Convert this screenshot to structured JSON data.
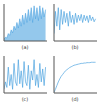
{
  "chart_data": [
    {
      "type": "area",
      "title": "(a)",
      "color": "#4da3e0",
      "xlim": [
        0,
        30
      ],
      "xticks": [
        0,
        10,
        20,
        30
      ],
      "ylim": [
        0,
        1
      ],
      "yticks": [
        0,
        0.5,
        1
      ],
      "tick_labels": false,
      "x": [
        0,
        1,
        2,
        3,
        4,
        5,
        6,
        7,
        8,
        9,
        10,
        11,
        12,
        13,
        14,
        15,
        16,
        17,
        18,
        19,
        20,
        21,
        22,
        23,
        24,
        25,
        26,
        27,
        28,
        29
      ],
      "values": [
        0.05,
        0.1,
        0.08,
        0.2,
        0.15,
        0.3,
        0.22,
        0.4,
        0.3,
        0.5,
        0.35,
        0.6,
        0.4,
        0.7,
        0.45,
        0.75,
        0.5,
        0.85,
        0.55,
        0.9,
        0.5,
        0.95,
        0.6,
        0.9,
        0.55,
        0.95,
        0.6,
        0.9,
        0.65,
        0.85
      ]
    },
    {
      "type": "line",
      "title": "(b)",
      "color": "#4da3e0",
      "xlim": [
        0,
        30
      ],
      "xticks": [
        0,
        10,
        20,
        30
      ],
      "ylim": [
        0,
        1
      ],
      "yticks": [
        0,
        0.5,
        1
      ],
      "tick_labels": false,
      "x": [
        0,
        1,
        2,
        3,
        4,
        5,
        6,
        7,
        8,
        9,
        10,
        11,
        12,
        13,
        14,
        15,
        16,
        17,
        18,
        19,
        20,
        21,
        22,
        23,
        24,
        25,
        26,
        27,
        28,
        29
      ],
      "values": [
        0.2,
        0.8,
        0.4,
        0.9,
        0.3,
        0.85,
        0.45,
        0.8,
        0.5,
        0.75,
        0.4,
        0.8,
        0.5,
        0.7,
        0.45,
        0.75,
        0.5,
        0.7,
        0.55,
        0.72,
        0.5,
        0.7,
        0.55,
        0.68,
        0.5,
        0.7,
        0.55,
        0.65,
        0.52,
        0.6
      ]
    },
    {
      "type": "line",
      "title": "(c)",
      "color": "#4da3e0",
      "xlim": [
        0,
        30
      ],
      "xticks": [
        0,
        10,
        20,
        30
      ],
      "ylim": [
        0,
        1
      ],
      "yticks": [
        0,
        0.5,
        1
      ],
      "tick_labels": false,
      "x": [
        0,
        1,
        2,
        3,
        4,
        5,
        6,
        7,
        8,
        9,
        10,
        11,
        12,
        13,
        14,
        15,
        16,
        17,
        18,
        19,
        20,
        21,
        22,
        23,
        24,
        25,
        26,
        27,
        28,
        29
      ],
      "values": [
        0.1,
        0.3,
        0.15,
        0.7,
        0.2,
        0.5,
        0.1,
        0.8,
        0.3,
        0.2,
        0.9,
        0.25,
        0.6,
        0.15,
        0.85,
        0.3,
        0.2,
        0.75,
        0.1,
        0.6,
        0.35,
        0.9,
        0.2,
        0.5,
        0.15,
        0.8,
        0.3,
        0.65,
        0.2,
        0.7
      ]
    },
    {
      "type": "line",
      "title": "(d)",
      "color": "#4da3e0",
      "xlim": [
        0,
        30
      ],
      "xticks": [
        0,
        10,
        20,
        30
      ],
      "ylim": [
        0,
        1
      ],
      "yticks": [
        0,
        0.5,
        1
      ],
      "tick_labels": false,
      "x": [
        0,
        1,
        2,
        3,
        4,
        5,
        6,
        7,
        8,
        9,
        10,
        11,
        12,
        13,
        14,
        15,
        16,
        17,
        18,
        19,
        20,
        21,
        22,
        23,
        24,
        25,
        26,
        27,
        28,
        29
      ],
      "values": [
        0.02,
        0.1,
        0.2,
        0.3,
        0.38,
        0.45,
        0.5,
        0.55,
        0.6,
        0.63,
        0.66,
        0.69,
        0.71,
        0.73,
        0.75,
        0.76,
        0.77,
        0.78,
        0.79,
        0.8,
        0.8,
        0.81,
        0.81,
        0.82,
        0.82,
        0.82,
        0.83,
        0.83,
        0.83,
        0.83
      ]
    }
  ]
}
